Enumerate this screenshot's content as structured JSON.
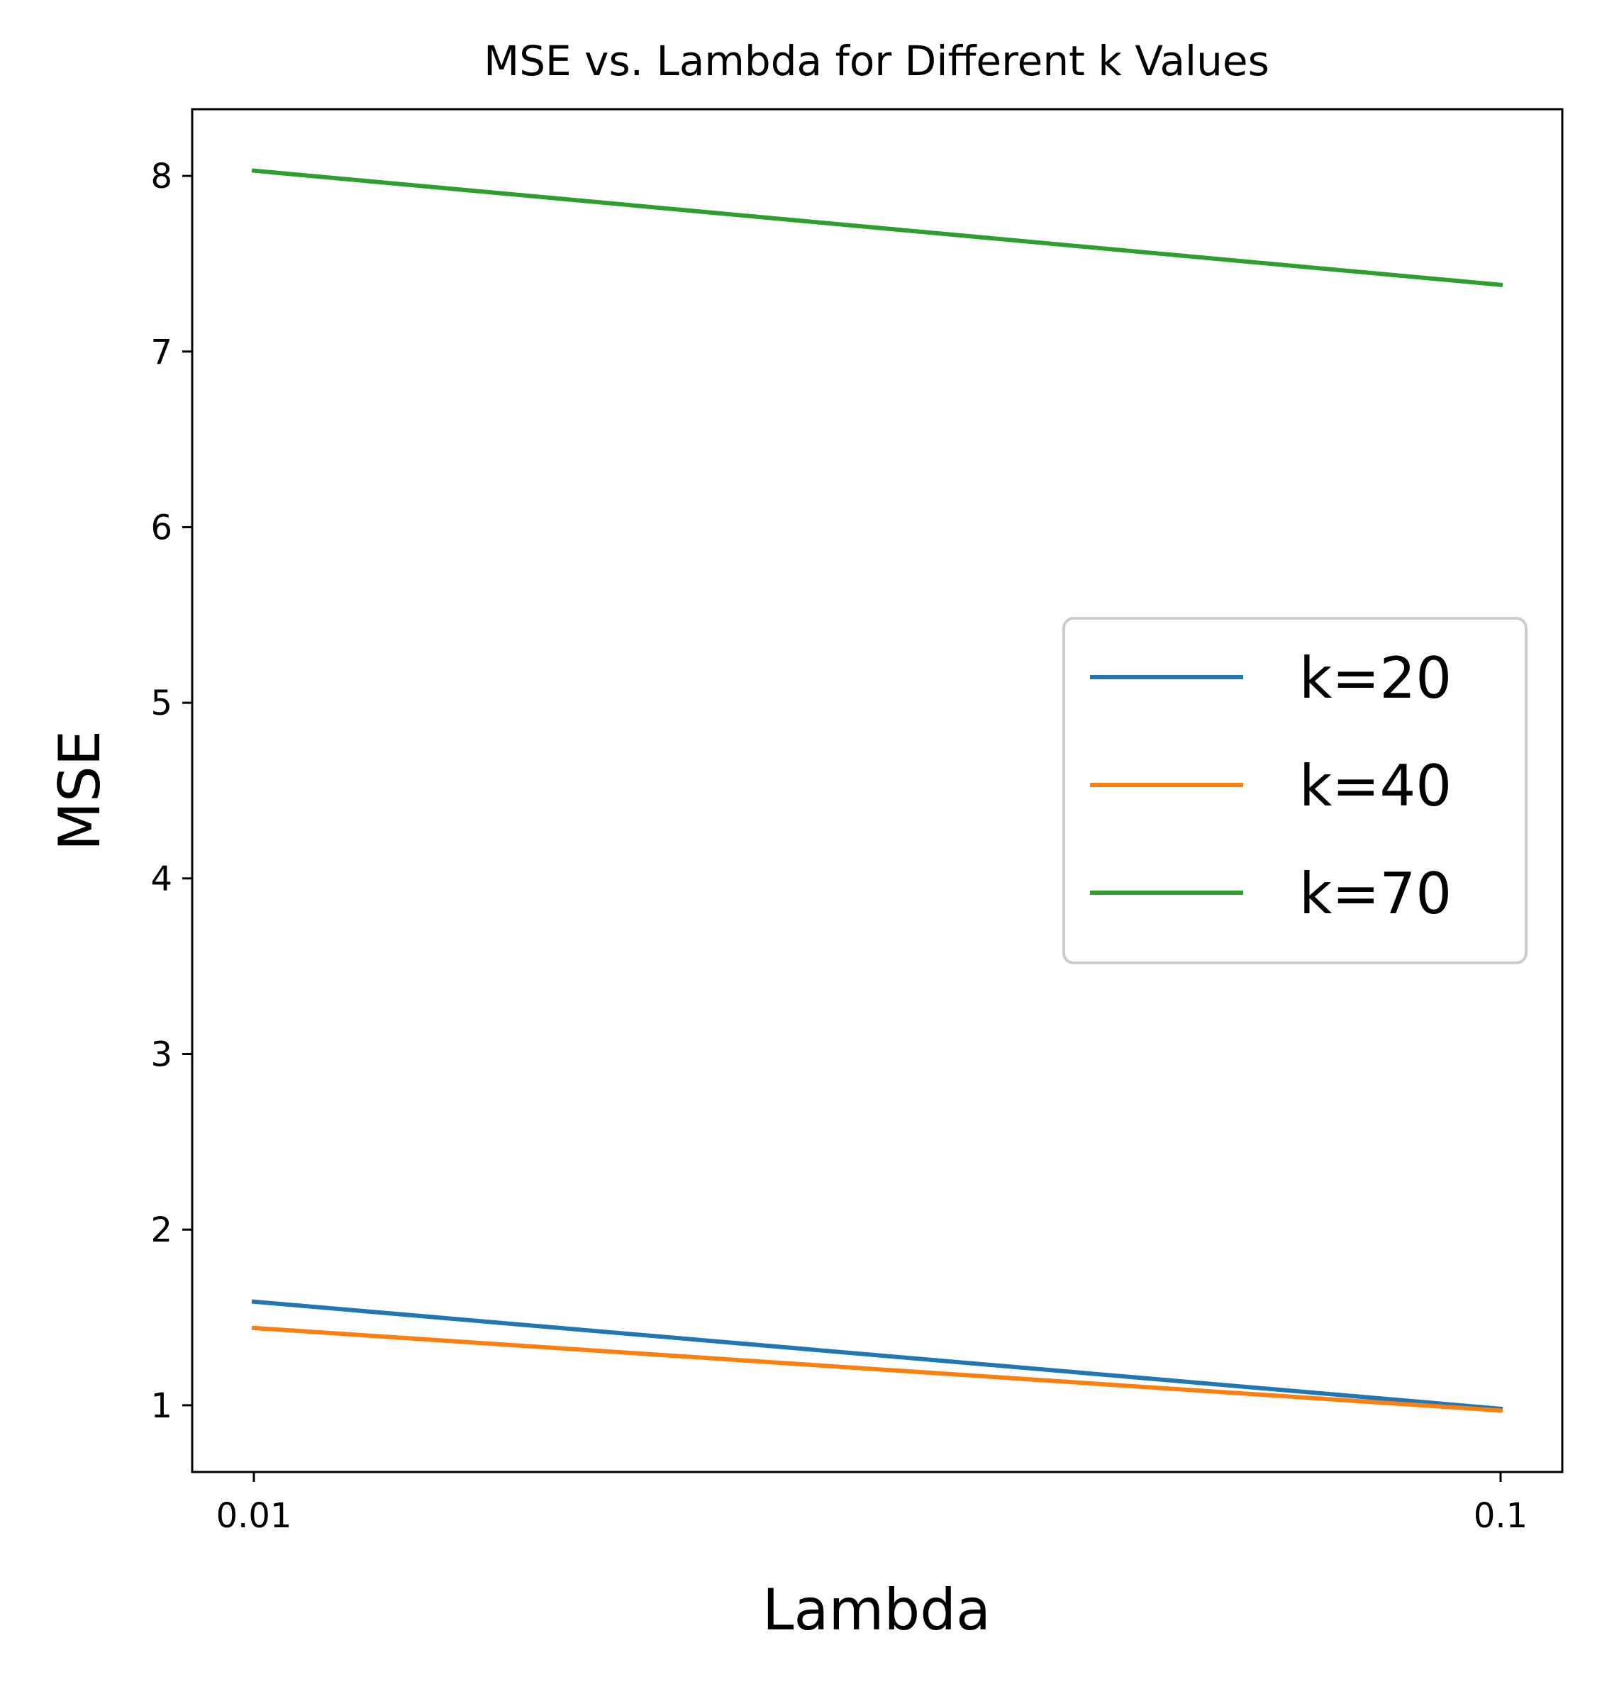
{
  "chart_data": {
    "type": "line",
    "title": "MSE vs. Lambda for Different k Values",
    "xlabel": "Lambda",
    "ylabel": "MSE",
    "x": [
      0.01,
      0.1
    ],
    "x_tick_labels": [
      "0.01",
      "0.1"
    ],
    "y_ticks": [
      1,
      2,
      3,
      4,
      5,
      6,
      7,
      8
    ],
    "ylim": [
      0.62,
      8.38
    ],
    "grid": false,
    "legend_position": "center-right",
    "series": [
      {
        "name": "k=20",
        "color": "#1f77b4",
        "values": [
          1.59,
          0.98
        ]
      },
      {
        "name": "k=40",
        "color": "#ff7f0e",
        "values": [
          1.44,
          0.97
        ]
      },
      {
        "name": "k=70",
        "color": "#2ca02c",
        "values": [
          8.03,
          7.38
        ]
      }
    ]
  }
}
